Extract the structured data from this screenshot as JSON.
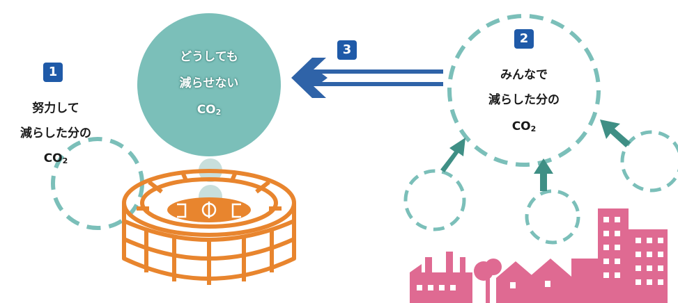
{
  "colors": {
    "teal_circle": "#7bbfb9",
    "teal_dash": "#7bbfb9",
    "connector": "#c8dfdc",
    "big_arrow": "#2f63a8",
    "small_arrow": "#3f8f85",
    "stadium": "#e8852e",
    "city": "#df6a92",
    "badge": "#1f5aa8"
  },
  "icons": [
    "stadium-icon",
    "factory-icon",
    "tree-icon",
    "houses-icon",
    "building-icon"
  ],
  "left_box": {
    "badge": "1",
    "line1": "努力して",
    "line2": "減らした分の",
    "co2_prefix": "CO",
    "co2_sub": "2"
  },
  "center": {
    "line1": "どうしても",
    "line2": "減らせない",
    "co2_prefix": "CO",
    "co2_sub": "2"
  },
  "arrow_badge": "3",
  "right_box": {
    "badge": "2",
    "line1": "みんなで",
    "line2": "減らした分の",
    "co2_prefix": "CO",
    "co2_sub": "2"
  }
}
